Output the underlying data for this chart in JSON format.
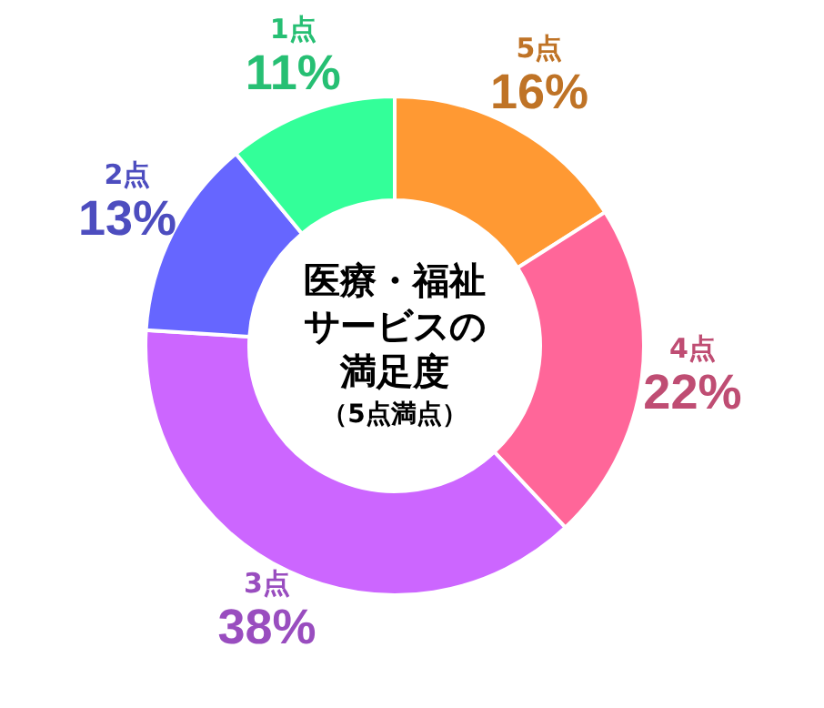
{
  "chart_data": {
    "type": "donut",
    "title": "医療・福祉サービスの満足度",
    "subtitle": "（5点満点）",
    "categories": [
      "5点",
      "4点",
      "3点",
      "2点",
      "1点"
    ],
    "values": [
      16,
      22,
      38,
      13,
      11
    ],
    "value_labels": [
      "16%",
      "22%",
      "38%",
      "13%",
      "11%"
    ],
    "colors": [
      "#ff9933",
      "#ff6699",
      "#cc66ff",
      "#6666ff",
      "#33ff99"
    ]
  }
}
